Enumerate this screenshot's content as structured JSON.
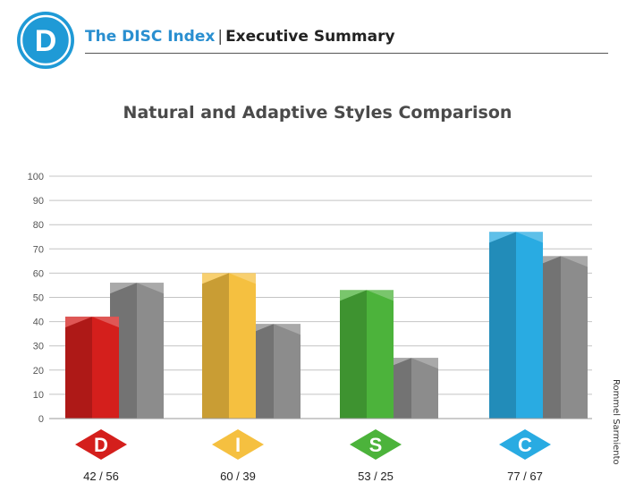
{
  "header": {
    "logo_letter": "D",
    "brand": "The DISC Index",
    "separator": "|",
    "subtitle": "Executive Summary"
  },
  "credit": "Rommel Sarmiento",
  "colors": {
    "brand_blue": "#2a8fd0",
    "D": "#d41f1c",
    "I": "#f5c040",
    "S": "#4cb33b",
    "C": "#29abe2",
    "adaptive_gray": "#8c8c8c"
  },
  "chart_data": {
    "type": "bar",
    "title": "Natural and Adaptive Styles Comparison",
    "categories": [
      "D",
      "I",
      "S",
      "C"
    ],
    "category_labels": [
      "42 / 56",
      "60 / 39",
      "53 / 25",
      "77 / 67"
    ],
    "series": [
      {
        "values": [
          42,
          60,
          53,
          77
        ]
      },
      {
        "values": [
          56,
          39,
          25,
          67
        ]
      }
    ],
    "ylim": [
      0,
      100
    ],
    "yticks": [
      0,
      10,
      20,
      30,
      40,
      50,
      60,
      70,
      80,
      90,
      100
    ],
    "grid": true
  }
}
